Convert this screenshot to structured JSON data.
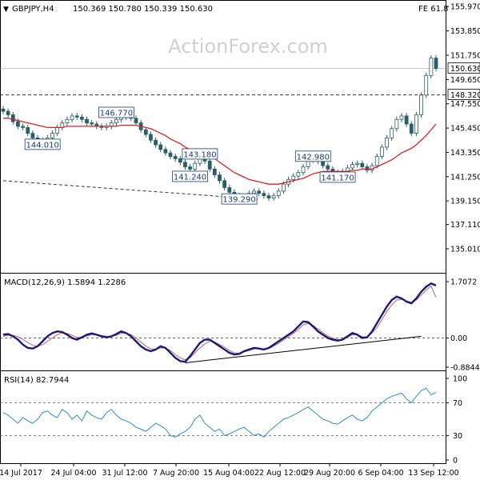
{
  "header": {
    "symbol": "GBPJPY,H4",
    "ohlc": "150.369 150.780 150.339 150.630",
    "fib_label": "FE 61.8"
  },
  "watermark": "ActionForex.com",
  "colors": {
    "candle": "#2a5f6a",
    "ema": "#e02020",
    "macd": "#1a1a7a",
    "signal": "#c06060",
    "rsi": "#2e8bd0",
    "axis": "#000000",
    "dashed": "#333333"
  },
  "price_panel": {
    "y_ticks": [
      "155.970",
      "153.850",
      "151.750",
      "149.650",
      "147.550",
      "145.450",
      "143.350",
      "141.250",
      "139.150",
      "137.110",
      "135.010"
    ],
    "last_price_label": "150.630",
    "resistance_label": "148.320",
    "annotations": [
      "146.770",
      "144.010",
      "143.180",
      "141.240",
      "139.290",
      "142.980",
      "141.170"
    ]
  },
  "macd_panel": {
    "title": "MACD(12,26,9) 1.5894 1.2286",
    "y_ticks": [
      "1.7072",
      "0.00",
      "-0.8844"
    ]
  },
  "rsi_panel": {
    "title": "RSI(14) 82.7944",
    "y_ticks": [
      "100",
      "70",
      "30",
      "0"
    ]
  },
  "x_axis_labels": [
    "14 Jul 2017",
    "24 Jul 04:00",
    "31 Jul 12:00",
    "7 Aug 20:00",
    "15 Aug 04:00",
    "22 Aug 12:00",
    "29 Aug 20:00",
    "6 Sep 04:00",
    "13 Sep 12:00"
  ],
  "chart_data": {
    "type": "line",
    "title": "GBPJPY,H4",
    "instrument": "GBPJPY",
    "timeframe": "H4",
    "x": [
      "14 Jul 2017",
      "24 Jul 04:00",
      "31 Jul 12:00",
      "7 Aug 20:00",
      "15 Aug 04:00",
      "22 Aug 12:00",
      "29 Aug 20:00",
      "6 Sep 04:00",
      "13 Sep 12:00"
    ],
    "price_ylim": [
      135.01,
      155.97
    ],
    "price_series": [
      {
        "name": "close",
        "values": [
          146.9,
          146.6,
          146.0,
          145.6,
          145.5,
          145.0,
          144.6,
          144.4,
          144.2,
          144.6,
          145.0,
          145.5,
          145.9,
          146.2,
          146.5,
          146.4,
          146.2,
          145.9,
          145.8,
          145.6,
          145.5,
          145.6,
          145.9,
          146.2,
          146.4,
          146.6,
          146.3,
          145.9,
          145.3,
          144.9,
          144.4,
          144.0,
          143.6,
          143.3,
          143.0,
          142.8,
          142.5,
          142.1,
          141.9,
          142.4,
          142.9,
          142.6,
          141.9,
          141.4,
          140.9,
          140.3,
          139.9,
          139.6,
          139.4,
          139.5,
          139.8,
          140.0,
          139.8,
          139.6,
          139.4,
          139.6,
          140.0,
          140.6,
          141.0,
          141.3,
          141.6,
          142.1,
          142.7,
          142.8,
          142.6,
          142.2,
          141.9,
          141.6,
          141.5,
          141.7,
          142.0,
          142.3,
          142.4,
          142.1,
          141.8,
          142.2,
          143.0,
          143.8,
          144.6,
          145.4,
          146.2,
          146.5,
          145.8,
          145.0,
          146.6,
          148.3,
          150.0,
          151.5,
          150.6
        ]
      }
    ],
    "ema_values": [
      146.3,
      146.3,
      146.2,
      146.1,
      146.0,
      145.9,
      145.8,
      145.7,
      145.6,
      145.5,
      145.5,
      145.5,
      145.5,
      145.6,
      145.6,
      145.6,
      145.6,
      145.6,
      145.6,
      145.6,
      145.6,
      145.6,
      145.6,
      145.6,
      145.7,
      145.7,
      145.7,
      145.7,
      145.6,
      145.5,
      145.4,
      145.2,
      145.0,
      144.8,
      144.5,
      144.3,
      144.1,
      143.8,
      143.6,
      143.4,
      143.3,
      143.2,
      143.0,
      142.8,
      142.5,
      142.2,
      141.9,
      141.6,
      141.4,
      141.2,
      141.0,
      140.9,
      140.8,
      140.7,
      140.6,
      140.6,
      140.6,
      140.7,
      140.8,
      140.9,
      141.0,
      141.1,
      141.3,
      141.5,
      141.6,
      141.7,
      141.7,
      141.7,
      141.7,
      141.7,
      141.7,
      141.8,
      141.8,
      141.9,
      141.9,
      141.9,
      142.1,
      142.3,
      142.5,
      142.7,
      143.0,
      143.3,
      143.5,
      143.7,
      144.0,
      144.4,
      144.8,
      145.3,
      145.8
    ],
    "support_line": [
      [
        0,
        140.9
      ],
      [
        52,
        139.3
      ]
    ],
    "resistance_level": 148.32,
    "annotations": [
      {
        "label": "146.770",
        "value": 146.77,
        "index": 23
      },
      {
        "label": "144.010",
        "value": 144.01,
        "index": 8
      },
      {
        "label": "143.180",
        "value": 143.18,
        "index": 40
      },
      {
        "label": "141.240",
        "value": 141.24,
        "index": 38
      },
      {
        "label": "139.290",
        "value": 139.29,
        "index": 48
      },
      {
        "label": "142.980",
        "value": 142.98,
        "index": 63
      },
      {
        "label": "141.170",
        "value": 141.17,
        "index": 68
      }
    ],
    "macd_ylim": [
      -0.8844,
      1.7072
    ],
    "macd_series": [
      {
        "name": "MACD(12,26,9)",
        "values": [
          0.1,
          0.12,
          0.05,
          -0.05,
          -0.2,
          -0.3,
          -0.32,
          -0.25,
          -0.1,
          0.05,
          0.15,
          0.2,
          0.18,
          0.1,
          0.0,
          -0.05,
          0.02,
          0.1,
          0.14,
          0.1,
          0.05,
          0.02,
          0.05,
          0.12,
          0.2,
          0.15,
          0.05,
          -0.1,
          -0.25,
          -0.35,
          -0.4,
          -0.35,
          -0.25,
          -0.3,
          -0.45,
          -0.6,
          -0.7,
          -0.72,
          -0.55,
          -0.35,
          -0.15,
          -0.05,
          -0.05,
          -0.15,
          -0.25,
          -0.35,
          -0.45,
          -0.5,
          -0.48,
          -0.4,
          -0.35,
          -0.3,
          -0.32,
          -0.35,
          -0.3,
          -0.2,
          -0.1,
          0.0,
          0.1,
          0.2,
          0.35,
          0.5,
          0.48,
          0.35,
          0.2,
          0.1,
          0.0,
          -0.05,
          -0.08,
          -0.05,
          0.05,
          0.15,
          0.1,
          0.0,
          0.02,
          0.2,
          0.45,
          0.7,
          0.95,
          1.15,
          1.25,
          1.2,
          1.1,
          1.05,
          1.2,
          1.4,
          1.55,
          1.65,
          1.59
        ]
      },
      {
        "name": "signal",
        "values": [
          0.05,
          0.08,
          0.08,
          0.04,
          -0.04,
          -0.14,
          -0.22,
          -0.25,
          -0.2,
          -0.1,
          0.0,
          0.1,
          0.15,
          0.14,
          0.08,
          0.02,
          0.02,
          0.06,
          0.1,
          0.1,
          0.08,
          0.05,
          0.05,
          0.08,
          0.14,
          0.15,
          0.1,
          0.0,
          -0.12,
          -0.25,
          -0.33,
          -0.34,
          -0.3,
          -0.3,
          -0.38,
          -0.5,
          -0.6,
          -0.66,
          -0.6,
          -0.45,
          -0.3,
          -0.18,
          -0.1,
          -0.12,
          -0.2,
          -0.28,
          -0.38,
          -0.45,
          -0.46,
          -0.42,
          -0.38,
          -0.33,
          -0.32,
          -0.33,
          -0.32,
          -0.25,
          -0.16,
          -0.06,
          0.04,
          0.14,
          0.26,
          0.4,
          0.44,
          0.38,
          0.27,
          0.16,
          0.06,
          -0.01,
          -0.05,
          -0.05,
          0.02,
          0.1,
          0.1,
          0.04,
          0.03,
          0.15,
          0.32,
          0.55,
          0.8,
          1.0,
          1.15,
          1.17,
          1.12,
          1.08,
          1.15,
          1.3,
          1.45,
          1.57,
          1.23
        ]
      }
    ],
    "macd_trendline": [
      [
        37,
        -0.75
      ],
      [
        85,
        0.05
      ]
    ],
    "rsi_ylim": [
      0,
      100
    ],
    "rsi_levels": [
      70,
      30
    ],
    "rsi_values": [
      58,
      55,
      50,
      45,
      52,
      48,
      45,
      50,
      58,
      60,
      55,
      52,
      62,
      58,
      50,
      55,
      48,
      60,
      55,
      52,
      50,
      58,
      62,
      55,
      50,
      48,
      45,
      40,
      38,
      35,
      40,
      45,
      42,
      38,
      30,
      28,
      32,
      35,
      40,
      50,
      55,
      45,
      40,
      35,
      38,
      30,
      32,
      35,
      38,
      40,
      35,
      30,
      32,
      28,
      35,
      40,
      45,
      50,
      52,
      55,
      58,
      62,
      65,
      60,
      55,
      50,
      48,
      45,
      44,
      48,
      52,
      55,
      50,
      48,
      52,
      60,
      65,
      70,
      75,
      78,
      80,
      82,
      75,
      70,
      78,
      85,
      88,
      80,
      82.79
    ]
  }
}
